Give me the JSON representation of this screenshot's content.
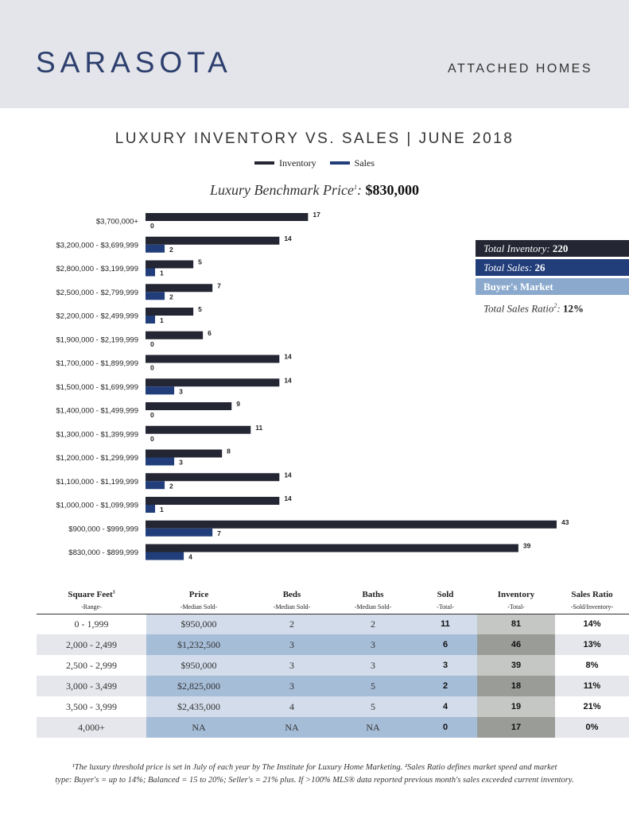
{
  "header": {
    "city": "SARASOTA",
    "subtitle": "ATTACHED HOMES"
  },
  "legend": {
    "inventory": "Inventory",
    "sales": "Sales"
  },
  "benchmark": {
    "label": "Luxury Benchmark Price",
    "sup": "1",
    "colon": ":",
    "value": "$830,000"
  },
  "colors": {
    "inventory": "#242633",
    "sales": "#213d7a",
    "header_bg": "#e4e5ea",
    "light_blue": "#8aa9cd"
  },
  "chart_data": {
    "type": "bar",
    "orientation": "horizontal",
    "title": "LUXURY INVENTORY VS. SALES | JUNE 2018",
    "categories": [
      "$3,700,000+",
      "$3,200,000 - $3,699,999",
      "$2,800,000 - $3,199,999",
      "$2,500,000 - $2,799,999",
      "$2,200,000 - $2,499,999",
      "$1,900,000 - $2,199,999",
      "$1,700,000 - $1,899,999",
      "$1,500,000 - $1,699,999",
      "$1,400,000 - $1,499,999",
      "$1,300,000 - $1,399,999",
      "$1,200,000 - $1,299,999",
      "$1,100,000 - $1,199,999",
      "$1,000,000 - $1,099,999",
      "$900,000 - $999,999",
      "$830,000 - $899,999"
    ],
    "series": [
      {
        "name": "Inventory",
        "values": [
          17,
          14,
          5,
          7,
          5,
          6,
          14,
          14,
          9,
          11,
          8,
          14,
          14,
          43,
          39
        ]
      },
      {
        "name": "Sales",
        "values": [
          0,
          2,
          1,
          2,
          1,
          0,
          0,
          3,
          0,
          0,
          3,
          2,
          1,
          7,
          4
        ]
      }
    ],
    "xlim": [
      0,
      43
    ]
  },
  "summary": {
    "total_inventory_label": "Total Inventory:",
    "total_inventory": "220",
    "total_sales_label": "Total Sales:",
    "total_sales": "26",
    "market": "Buyer's Market",
    "ratio_label": "Total Sales Ratio",
    "ratio_sup": "2",
    "ratio_colon": ":",
    "ratio": "12%"
  },
  "table": {
    "headers": [
      "Square Feet",
      "Price",
      "Beds",
      "Baths",
      "Sold",
      "Inventory",
      "Sales Ratio"
    ],
    "header_sup": "3",
    "subheaders": [
      "-Range-",
      "-Median Sold-",
      "-Median Sold-",
      "-Median Sold-",
      "-Total-",
      "-Total-",
      "-Sold/Inventory-"
    ],
    "rows": [
      [
        "0 - 1,999",
        "$950,000",
        "2",
        "2",
        "11",
        "81",
        "14%"
      ],
      [
        "2,000 - 2,499",
        "$1,232,500",
        "3",
        "3",
        "6",
        "46",
        "13%"
      ],
      [
        "2,500 - 2,999",
        "$950,000",
        "3",
        "3",
        "3",
        "39",
        "8%"
      ],
      [
        "3,000 - 3,499",
        "$2,825,000",
        "3",
        "5",
        "2",
        "18",
        "11%"
      ],
      [
        "3,500 - 3,999",
        "$2,435,000",
        "4",
        "5",
        "4",
        "19",
        "21%"
      ],
      [
        "4,000+",
        "NA",
        "NA",
        "NA",
        "0",
        "17",
        "0%"
      ]
    ]
  },
  "footnote": {
    "line1": "¹The luxury threshold price is set in July of each year by The Institute for Luxury Home Marketing. ²Sales Ratio defines market speed and market",
    "line2": "type: Buyer's = up to 14%; Balanced = 15 to 20%; Seller's = 21% plus. If >100% MLS® data reported previous month's sales exceeded current inventory."
  }
}
